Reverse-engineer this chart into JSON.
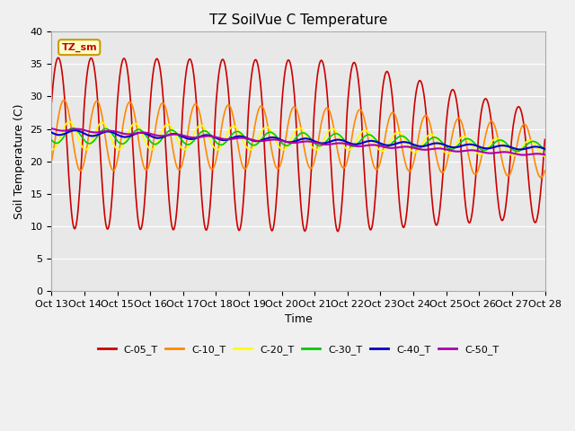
{
  "title": "TZ SoilVue C Temperature",
  "xlabel": "Time",
  "ylabel": "Soil Temperature (C)",
  "ylim": [
    0,
    40
  ],
  "yticks": [
    0,
    5,
    10,
    15,
    20,
    25,
    30,
    35,
    40
  ],
  "x_labels": [
    "Oct 13",
    "Oct 14",
    "Oct 15",
    "Oct 16",
    "Oct 17",
    "Oct 18",
    "Oct 19",
    "Oct 20",
    "Oct 21",
    "Oct 22",
    "Oct 23",
    "Oct 24",
    "Oct 25",
    "Oct 26",
    "Oct 27",
    "Oct 28"
  ],
  "legend_label": "TZ_sm",
  "series": [
    {
      "name": "C-05_T",
      "color": "#cc0000"
    },
    {
      "name": "C-10_T",
      "color": "#ff8800"
    },
    {
      "name": "C-20_T",
      "color": "#ffff00"
    },
    {
      "name": "C-30_T",
      "color": "#00cc00"
    },
    {
      "name": "C-40_T",
      "color": "#0000cc"
    },
    {
      "name": "C-50_T",
      "color": "#aa00aa"
    }
  ],
  "bg_color": "#e8e8e8",
  "grid_color": "#ffffff",
  "title_fontsize": 11,
  "axis_fontsize": 9,
  "tick_fontsize": 8
}
